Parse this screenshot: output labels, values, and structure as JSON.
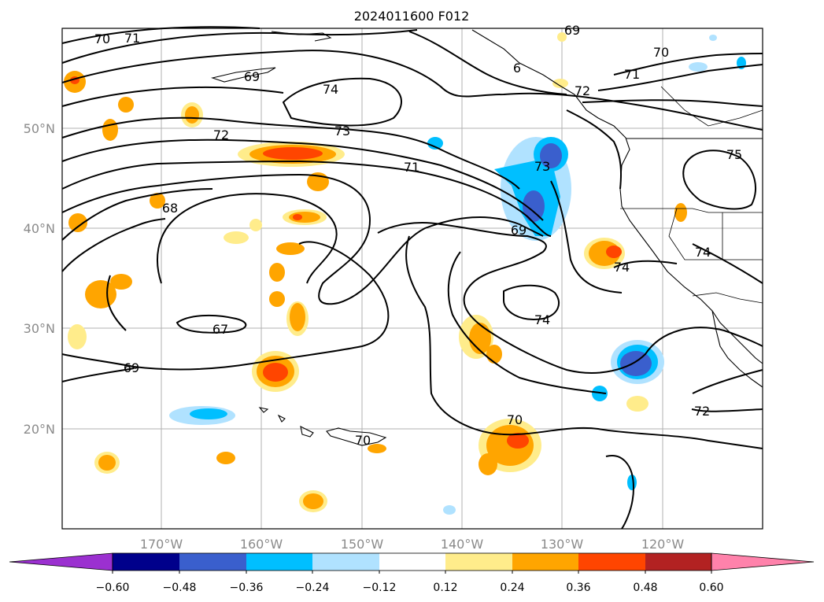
{
  "title": "2024011600 F012",
  "lat_labels": [
    "50°N",
    "40°N",
    "30°N",
    "20°N"
  ],
  "lon_labels": [
    "170°W",
    "160°W",
    "150°W",
    "140°W",
    "130°W",
    "120°W"
  ],
  "contour_labels": [
    "70",
    "71",
    "74",
    "72",
    "73",
    "71",
    "68",
    "69",
    "67",
    "69",
    "74",
    "70",
    "70",
    "71",
    "72",
    "74",
    "74",
    "75",
    "72",
    "69",
    "73",
    "70",
    "69",
    "6"
  ],
  "colorbar": {
    "ticks": [
      "−0.60",
      "−0.48",
      "−0.36",
      "−0.24",
      "−0.12",
      "0.12",
      "0.24",
      "0.36",
      "0.48",
      "0.60"
    ],
    "colors": [
      "#9b30d0",
      "#00008b",
      "#3a5fcd",
      "#00bfff",
      "#b0e2ff",
      "#ffffff",
      "#ffec8b",
      "#ffa500",
      "#ff4500",
      "#b22222",
      "#ff82ab"
    ]
  }
}
